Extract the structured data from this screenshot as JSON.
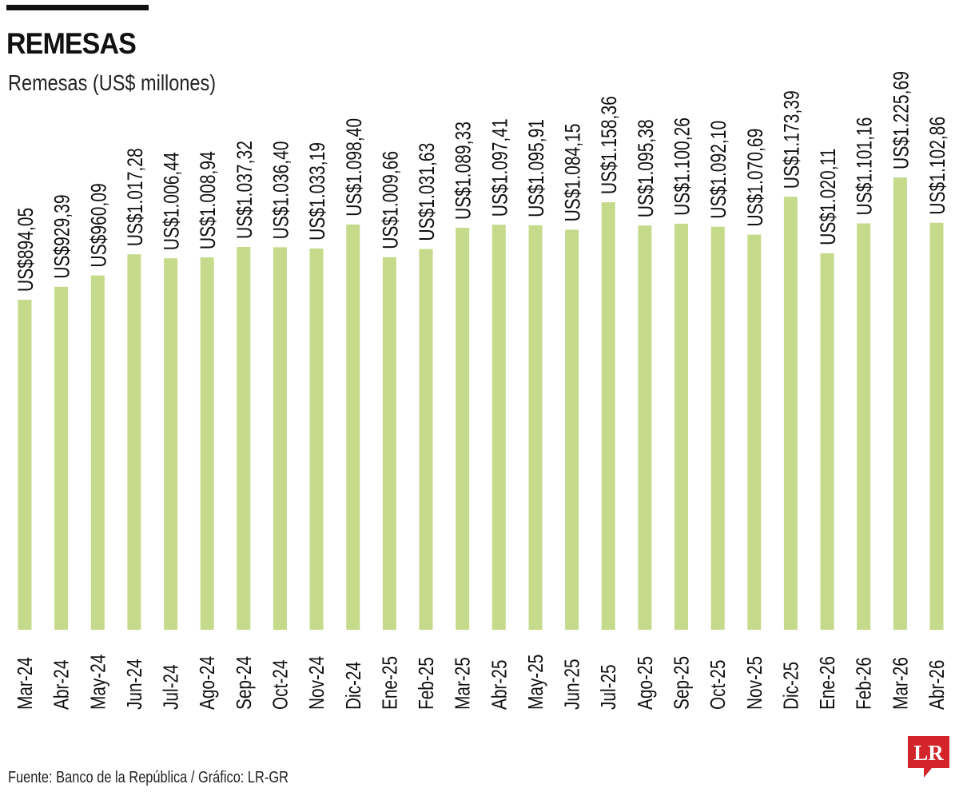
{
  "header": {
    "title": "REMESAS",
    "subtitle": "Remesas (US$ millones)"
  },
  "footer": {
    "source": "Fuente: Banco de la República / Gráfico: LR-GR"
  },
  "logo": {
    "text": "LR",
    "color": "#d3242b"
  },
  "colors": {
    "bar": "#c5da8a",
    "text": "#111111"
  },
  "chart_data": {
    "type": "bar",
    "categories": [
      "Mar-24",
      "Abr-24",
      "May-24",
      "Jun-24",
      "Jul-24",
      "Ago-24",
      "Sep-24",
      "Oct-24",
      "Nov-24",
      "Dic-24",
      "Ene-25",
      "Feb-25",
      "Mar-25",
      "Abr-25",
      "May-25",
      "Jun-25",
      "Jul-25",
      "Ago-25",
      "Sep-25",
      "Oct-25",
      "Nov-25",
      "Dic-25",
      "Ene-26",
      "Feb-26",
      "Mar-26",
      "Abr-26"
    ],
    "values": [
      894.05,
      929.39,
      960.09,
      1017.28,
      1006.44,
      1008.94,
      1037.32,
      1036.4,
      1033.19,
      1098.4,
      1009.66,
      1031.63,
      1089.33,
      1097.41,
      1095.91,
      1084.15,
      1158.36,
      1095.38,
      1100.26,
      1092.1,
      1070.69,
      1173.39,
      1020.11,
      1101.16,
      1225.69,
      1102.86
    ],
    "labels": [
      "US$894,05",
      "US$929,39",
      "US$960,09",
      "US$1.017,28",
      "US$1.006,44",
      "US$1.008,94",
      "US$1.037,32",
      "US$1.036,40",
      "US$1.033,19",
      "US$1.098,40",
      "US$1.009,66",
      "US$1.031,63",
      "US$1.089,33",
      "US$1.097,41",
      "US$1.095,91",
      "US$1.084,15",
      "US$1.158,36",
      "US$1.095,38",
      "US$1.100,26",
      "US$1.092,10",
      "US$1.070,69",
      "US$1.173,39",
      "US$1.020,11",
      "US$1.101,16",
      "US$1.225,69",
      "US$1.102,86"
    ],
    "ylim": [
      0,
      1225.69
    ],
    "grid": false
  }
}
